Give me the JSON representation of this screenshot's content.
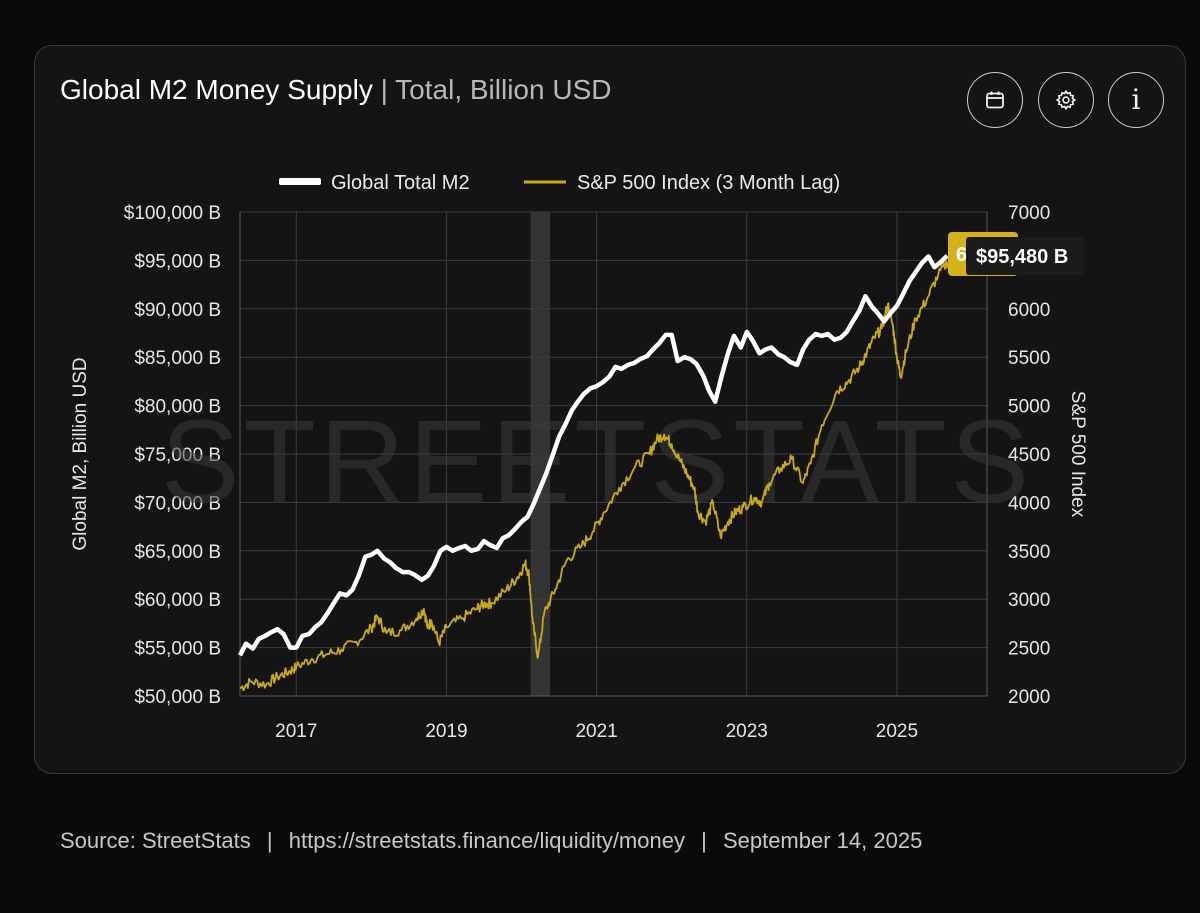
{
  "header": {
    "title": "Global M2 Money Supply",
    "separator": "|",
    "subtitle": "Total, Billion USD"
  },
  "toolbar": {
    "calendar_icon": "calendar-icon",
    "settings_icon": "gear-icon",
    "info_icon": "info-icon",
    "info_glyph": "i"
  },
  "footer": {
    "source_label": "Source:",
    "source_name": "StreetStats",
    "url": "https://streetstats.finance/liquidity/money",
    "date": "September 14, 2025",
    "pipe": "|"
  },
  "colors": {
    "m2": "#ffffff",
    "spx": "#c9a918",
    "grid": "#3c3c3c",
    "badge_spx": "#d4b21c",
    "badge_m2": "#1b1b1b",
    "watermark": "#3a3a3a"
  },
  "chart_data": {
    "type": "line",
    "watermark": "STREETSTATS",
    "legend_position": "top-center",
    "grid": true,
    "xlim": [
      2016.25,
      2026.2
    ],
    "x_tick_values": [
      2017,
      2019,
      2021,
      2023,
      2025
    ],
    "x_tick_labels": [
      "2017",
      "2019",
      "2021",
      "2023",
      "2025"
    ],
    "left_axis": {
      "label": "Global M2, Billion USD",
      "lim": [
        50000,
        100000
      ],
      "tick_values": [
        50000,
        55000,
        60000,
        65000,
        70000,
        75000,
        80000,
        85000,
        90000,
        95000,
        100000
      ],
      "tick_labels": [
        "$50,000 B",
        "$55,000 B",
        "$60,000 B",
        "$65,000 B",
        "$70,000 B",
        "$75,000 B",
        "$80,000 B",
        "$85,000 B",
        "$90,000 B",
        "$95,000 B",
        "$100,000 B"
      ]
    },
    "right_axis": {
      "label": "S&P 500 Index",
      "lim": [
        2000,
        7000
      ],
      "tick_values": [
        2000,
        2500,
        3000,
        3500,
        4000,
        4500,
        5000,
        5500,
        6000,
        6500,
        7000
      ],
      "tick_labels": [
        "2000",
        "2500",
        "3000",
        "3500",
        "4000",
        "4500",
        "5000",
        "5500",
        "6000",
        "6500",
        "7000"
      ]
    },
    "shaded_band": {
      "x_start": 2020.12,
      "x_end": 2020.38
    },
    "series": [
      {
        "name": "Global Total M2",
        "axis": "left",
        "x": [
          2016.25,
          2016.33,
          2016.42,
          2016.5,
          2016.58,
          2016.67,
          2016.75,
          2016.83,
          2016.92,
          2017.0,
          2017.08,
          2017.17,
          2017.25,
          2017.33,
          2017.42,
          2017.5,
          2017.58,
          2017.67,
          2017.75,
          2017.83,
          2017.92,
          2018.0,
          2018.08,
          2018.17,
          2018.25,
          2018.33,
          2018.42,
          2018.5,
          2018.58,
          2018.67,
          2018.75,
          2018.83,
          2018.92,
          2019.0,
          2019.08,
          2019.17,
          2019.25,
          2019.33,
          2019.42,
          2019.5,
          2019.58,
          2019.67,
          2019.75,
          2019.83,
          2019.92,
          2020.0,
          2020.08,
          2020.17,
          2020.25,
          2020.33,
          2020.42,
          2020.5,
          2020.58,
          2020.67,
          2020.75,
          2020.83,
          2020.92,
          2021.0,
          2021.08,
          2021.17,
          2021.25,
          2021.33,
          2021.42,
          2021.5,
          2021.58,
          2021.67,
          2021.75,
          2021.83,
          2021.92,
          2022.0,
          2022.08,
          2022.17,
          2022.25,
          2022.33,
          2022.42,
          2022.5,
          2022.58,
          2022.67,
          2022.75,
          2022.83,
          2022.92,
          2023.0,
          2023.08,
          2023.17,
          2023.25,
          2023.33,
          2023.42,
          2023.5,
          2023.58,
          2023.67,
          2023.75,
          2023.83,
          2023.92,
          2024.0,
          2024.08,
          2024.17,
          2024.25,
          2024.33,
          2024.42,
          2024.5,
          2024.58,
          2024.67,
          2024.75,
          2024.83,
          2024.92,
          2025.0,
          2025.08,
          2025.17,
          2025.25,
          2025.33,
          2025.42,
          2025.5,
          2025.58,
          2025.67
        ],
        "y": [
          54200,
          55400,
          54900,
          55900,
          56200,
          56600,
          56900,
          56400,
          55000,
          55000,
          56200,
          56400,
          57100,
          57600,
          58600,
          59600,
          60600,
          60400,
          61000,
          62400,
          64400,
          64600,
          65000,
          64200,
          63800,
          63200,
          62800,
          62800,
          62500,
          62000,
          62400,
          63400,
          65000,
          65400,
          65000,
          65300,
          65500,
          65000,
          65200,
          66000,
          65600,
          65300,
          66300,
          66600,
          67300,
          68000,
          68500,
          70000,
          71500,
          73000,
          75000,
          76800,
          78000,
          79500,
          80400,
          81200,
          81800,
          82000,
          82400,
          83000,
          84000,
          83800,
          84200,
          84400,
          84800,
          85100,
          85800,
          86400,
          87300,
          87300,
          84600,
          85000,
          84800,
          84300,
          83100,
          81500,
          80400,
          83200,
          85400,
          87200,
          86000,
          87600,
          86700,
          85400,
          85800,
          86000,
          85300,
          85000,
          84500,
          84200,
          85800,
          86800,
          87400,
          87200,
          87400,
          86800,
          87000,
          87600,
          88800,
          89800,
          91300,
          90200,
          89500,
          88700,
          89600,
          90300,
          91500,
          92900,
          93800,
          94700,
          95400,
          94300,
          94800,
          95480
        ]
      },
      {
        "name": "S&P 500 Index (3 Month Lag)",
        "axis": "right",
        "x": [
          2016.25,
          2016.4,
          2016.6,
          2016.75,
          2016.9,
          2017.0,
          2017.2,
          2017.4,
          2017.6,
          2017.8,
          2018.0,
          2018.08,
          2018.2,
          2018.4,
          2018.6,
          2018.7,
          2018.75,
          2018.8,
          2018.9,
          2019.0,
          2019.2,
          2019.4,
          2019.5,
          2019.6,
          2019.8,
          2019.95,
          2020.05,
          2020.1,
          2020.15,
          2020.22,
          2020.3,
          2020.45,
          2020.6,
          2020.8,
          2020.95,
          2021.1,
          2021.3,
          2021.5,
          2021.7,
          2021.8,
          2021.9,
          2022.0,
          2022.1,
          2022.2,
          2022.3,
          2022.35,
          2022.45,
          2022.55,
          2022.65,
          2022.75,
          2022.85,
          2022.95,
          2023.1,
          2023.2,
          2023.3,
          2023.45,
          2023.6,
          2023.75,
          2023.85,
          2024.0,
          2024.2,
          2024.35,
          2024.5,
          2024.6,
          2024.7,
          2024.8,
          2024.88,
          2024.95,
          2025.0,
          2025.05,
          2025.12,
          2025.25,
          2025.4,
          2025.55,
          2025.7
        ],
        "y": [
          2080,
          2150,
          2120,
          2200,
          2250,
          2300,
          2380,
          2430,
          2480,
          2560,
          2700,
          2820,
          2650,
          2680,
          2800,
          2900,
          2700,
          2780,
          2550,
          2710,
          2800,
          2900,
          2950,
          2960,
          3100,
          3230,
          3370,
          3250,
          2750,
          2400,
          2850,
          3100,
          3400,
          3550,
          3700,
          3900,
          4150,
          4350,
          4500,
          4650,
          4700,
          4600,
          4450,
          4300,
          4150,
          3900,
          3800,
          4000,
          3650,
          3800,
          3900,
          3950,
          4050,
          4000,
          4200,
          4350,
          4450,
          4200,
          4400,
          4800,
          5150,
          5250,
          5400,
          5550,
          5700,
          5800,
          6050,
          5800,
          5500,
          5300,
          5550,
          5900,
          6100,
          6350,
          6510
        ]
      }
    ],
    "last_values": {
      "spx_label": "6,584.29",
      "m2_label": "$95,480 B"
    }
  }
}
